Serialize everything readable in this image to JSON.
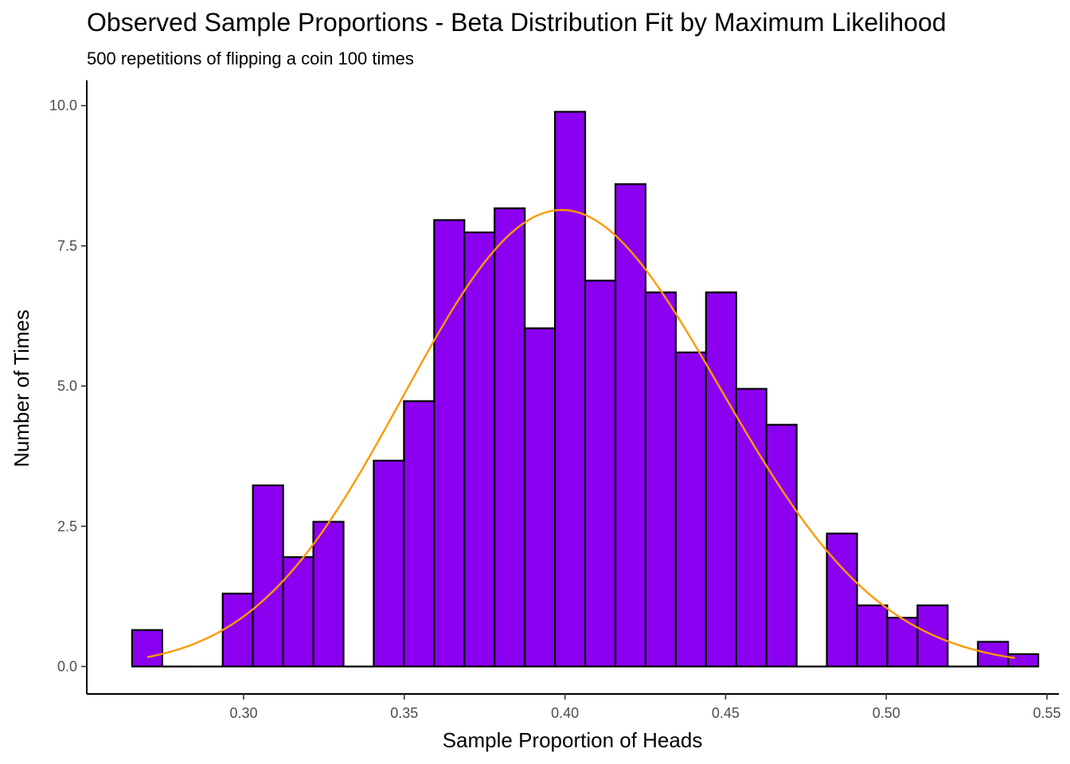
{
  "chart_data": {
    "type": "bar",
    "title": "Observed Sample Proportions - Beta Distribution Fit by Maximum Likelihood",
    "subtitle": "500 repetitions of flipping a coin 100 times",
    "xlabel": "Sample Proportion of Heads",
    "ylabel": "Number of Times",
    "xlim": [
      0.2512,
      0.5537
    ],
    "ylim": [
      -0.49,
      10.45
    ],
    "x_ticks": [
      0.3,
      0.35,
      0.4,
      0.45,
      0.5,
      0.55
    ],
    "x_tick_labels": [
      "0.30",
      "0.35",
      "0.40",
      "0.45",
      "0.50",
      "0.55"
    ],
    "y_ticks": [
      0.0,
      2.5,
      5.0,
      7.5,
      10.0
    ],
    "y_tick_labels": [
      "0.0",
      "2.5",
      "5.0",
      "7.5",
      "10.0"
    ],
    "bin_width": 0.0094,
    "bins": [
      {
        "x": 0.27,
        "density": 0.65
      },
      {
        "x": 0.2794,
        "density": 0.0
      },
      {
        "x": 0.2888,
        "density": 0.0
      },
      {
        "x": 0.2982,
        "density": 1.3
      },
      {
        "x": 0.3076,
        "density": 3.23
      },
      {
        "x": 0.317,
        "density": 1.95
      },
      {
        "x": 0.3264,
        "density": 2.58
      },
      {
        "x": 0.3358,
        "density": 0.0
      },
      {
        "x": 0.3452,
        "density": 3.67
      },
      {
        "x": 0.3546,
        "density": 4.73
      },
      {
        "x": 0.364,
        "density": 7.96
      },
      {
        "x": 0.3734,
        "density": 7.74
      },
      {
        "x": 0.3828,
        "density": 8.17
      },
      {
        "x": 0.3922,
        "density": 6.03
      },
      {
        "x": 0.4016,
        "density": 9.89
      },
      {
        "x": 0.411,
        "density": 6.88
      },
      {
        "x": 0.4204,
        "density": 8.6
      },
      {
        "x": 0.4298,
        "density": 6.67
      },
      {
        "x": 0.4392,
        "density": 5.6
      },
      {
        "x": 0.4486,
        "density": 6.67
      },
      {
        "x": 0.458,
        "density": 4.95
      },
      {
        "x": 0.4674,
        "density": 4.31
      },
      {
        "x": 0.4768,
        "density": 0.0
      },
      {
        "x": 0.4862,
        "density": 2.37
      },
      {
        "x": 0.4956,
        "density": 1.09
      },
      {
        "x": 0.505,
        "density": 0.87
      },
      {
        "x": 0.5144,
        "density": 1.09
      },
      {
        "x": 0.5238,
        "density": 0.0
      },
      {
        "x": 0.5332,
        "density": 0.44
      },
      {
        "x": 0.5426,
        "density": 0.22
      }
    ],
    "beta_fit_curve": {
      "x_range": [
        0.27,
        0.54
      ],
      "peak_x": 0.399,
      "peak_y": 8.14
    },
    "colors": {
      "bar_fill": "#8B00F0",
      "bar_outline": "#000000",
      "curve": "#FF9900"
    },
    "grid": false,
    "legend": "none"
  }
}
